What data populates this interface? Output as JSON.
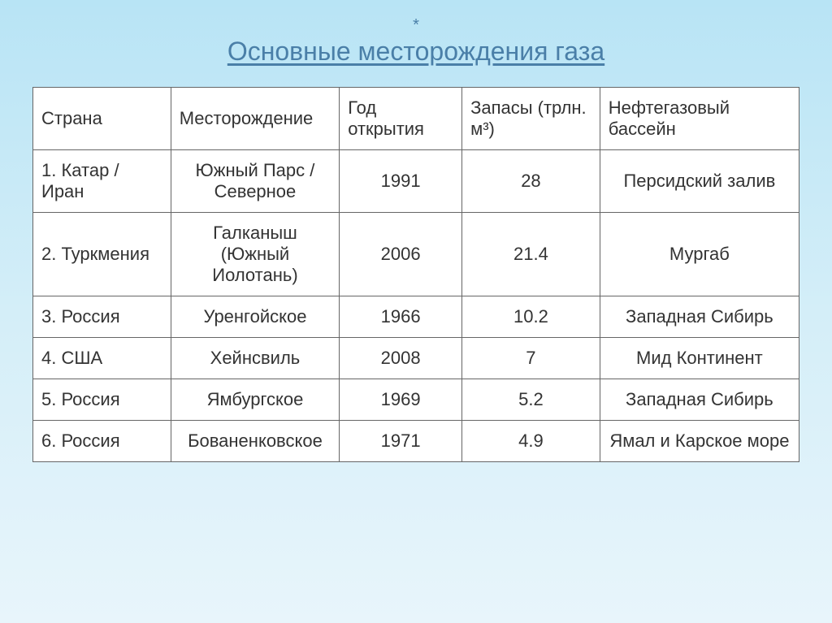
{
  "title": "Основные месторождения газа",
  "asterisk": "*",
  "headers": {
    "country": "Страна",
    "field": "Месторождение",
    "year": "Год открытия",
    "reserves": "Запасы (трлн. м³)",
    "basin": "Нефтегазовый бассейн"
  },
  "rows": [
    {
      "country": "1. Катар / Иран",
      "field": "Южный Парс / Северное",
      "year": "1991",
      "reserves": "28",
      "basin": "Персидский залив"
    },
    {
      "country": "2. Туркмения",
      "field": "Галканыш (Южный Иолотань)",
      "year": "2006",
      "reserves": "21.4",
      "basin": "Мургаб"
    },
    {
      "country": "3. Россия",
      "field": "Уренгойское",
      "year": "1966",
      "reserves": "10.2",
      "basin": "Западная Сибирь"
    },
    {
      "country": "4. США",
      "field": "Хейнсвиль",
      "year": "2008",
      "reserves": "7",
      "basin": "Мид Континент"
    },
    {
      "country": "5. Россия",
      "field": "Ямбургское",
      "year": "1969",
      "reserves": "5.2",
      "basin": "Западная Сибирь"
    },
    {
      "country": "6. Россия",
      "field": "Бованенковское",
      "year": "1971",
      "reserves": "4.9",
      "basin": "Ямал и Карское море"
    }
  ],
  "colors": {
    "title": "#4a7fa8",
    "border": "#666666",
    "text": "#333333",
    "bg_top": "#b8e4f5",
    "bg_bottom": "#e8f5fb",
    "cell_bg": "#ffffff"
  },
  "fonts": {
    "title_size": 32,
    "cell_size": 22
  }
}
